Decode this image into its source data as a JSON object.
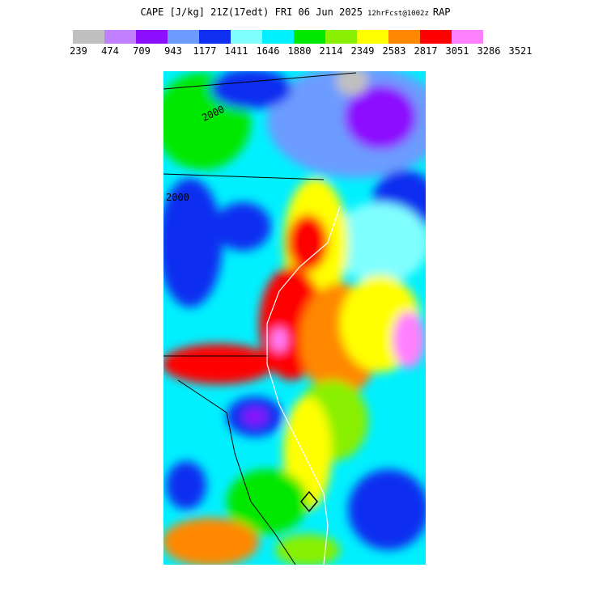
{
  "header": {
    "title": "CAPE [J/kg] 21Z(17edt) FRI 06 Jun 2025",
    "forecast": "12hrFcst@1002z",
    "model": "RAP"
  },
  "legend": {
    "labels": [
      239,
      474,
      709,
      943,
      1177,
      1411,
      1646,
      1880,
      2114,
      2349,
      2583,
      2817,
      3051,
      3286,
      3521
    ],
    "colors": [
      "#c0c0c0",
      "#c080ff",
      "#8c10ff",
      "#6c9cff",
      "#0f2ff0",
      "#80ffff",
      "#00f0ff",
      "#00e800",
      "#88f000",
      "#ffff00",
      "#ff8800",
      "#ff0000",
      "#ff80ff"
    ]
  },
  "map": {
    "contour_labels": [
      "2000",
      "2000"
    ]
  }
}
